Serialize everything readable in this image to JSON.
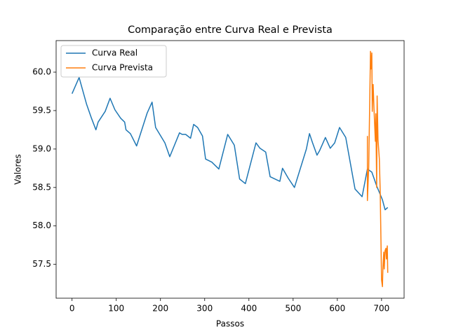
{
  "chart_data": {
    "type": "line",
    "title": "Comparação entre Curva Real e Prevista",
    "xlabel": "Passos",
    "ylabel": "Valores",
    "xlim": [
      -36,
      751
    ],
    "ylim": [
      57.06,
      60.41
    ],
    "xticks": [
      0,
      100,
      200,
      300,
      400,
      500,
      600,
      700
    ],
    "yticks": [
      {
        "value": 57.5,
        "label": "57.5"
      },
      {
        "value": 58.0,
        "label": "58.0"
      },
      58.5,
      {
        "value": 59.0,
        "label": "59.0"
      },
      59.5,
      {
        "value": 60.0,
        "label": "60.0"
      }
    ],
    "legend": "upper left",
    "series": [
      {
        "name": "Curva Real",
        "color": "#1f77b4",
        "x": [
          0,
          16,
          33,
          44,
          54,
          59,
          75,
          86,
          97,
          110,
          119,
          122,
          132,
          146,
          170,
          181,
          189,
          210,
          221,
          243,
          249,
          257,
          268,
          275,
          284,
          295,
          302,
          316,
          332,
          352,
          367,
          379,
          392,
          416,
          425,
          438,
          448,
          470,
          476,
          489,
          503,
          530,
          537,
          544,
          554,
          560,
          573,
          584,
          594,
          605,
          619,
          640,
          656,
          668,
          678,
          689,
          702,
          708,
          714
        ],
        "values": [
          59.72,
          59.93,
          59.58,
          59.4,
          59.25,
          59.35,
          59.49,
          59.66,
          59.51,
          59.4,
          59.35,
          59.25,
          59.2,
          59.04,
          59.47,
          59.61,
          59.28,
          59.08,
          58.9,
          59.21,
          59.19,
          59.19,
          59.14,
          59.32,
          59.28,
          59.17,
          58.87,
          58.83,
          58.74,
          59.19,
          59.05,
          58.61,
          58.55,
          59.08,
          59.01,
          58.96,
          58.64,
          58.58,
          58.75,
          58.62,
          58.5,
          59.0,
          59.2,
          59.08,
          58.92,
          58.98,
          59.15,
          59.01,
          59.08,
          59.28,
          59.15,
          58.48,
          58.38,
          58.74,
          58.7,
          58.52,
          58.34,
          58.21,
          58.24
        ]
      },
      {
        "name": "Curva Prevista",
        "color": "#ff7f0e",
        "x": [
          668,
          668,
          671,
          675,
          676,
          678,
          679,
          681,
          683,
          686,
          687,
          689,
          690,
          692,
          695,
          697,
          700,
          702,
          703,
          705,
          706,
          708,
          710,
          711,
          713,
          714
        ],
        "values": [
          59.17,
          58.33,
          58.77,
          60.27,
          60.04,
          60.25,
          59.49,
          59.84,
          59.51,
          59.1,
          59.46,
          58.5,
          59.69,
          59.12,
          58.87,
          58.44,
          57.3,
          57.21,
          57.44,
          57.66,
          57.44,
          57.68,
          57.71,
          57.57,
          57.74,
          57.39
        ]
      }
    ]
  }
}
